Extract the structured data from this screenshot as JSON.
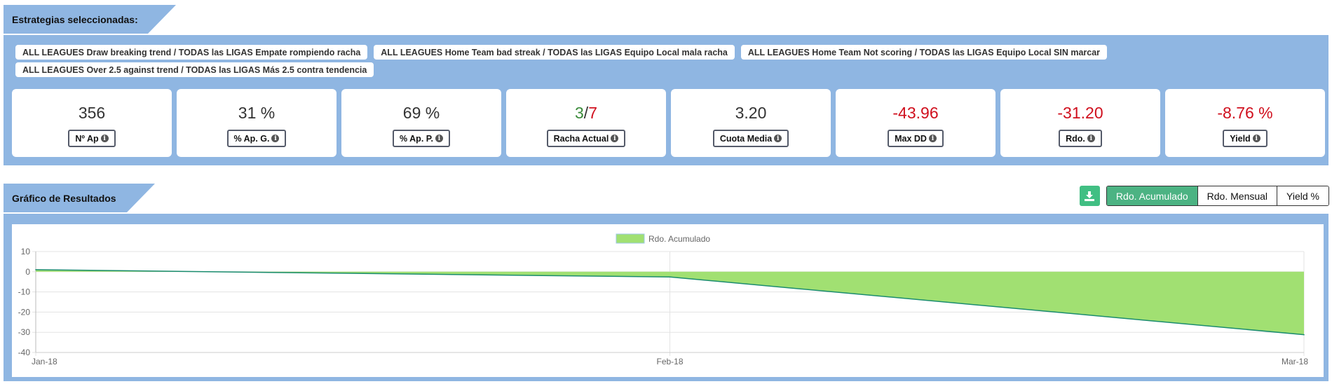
{
  "strategies_section": {
    "title": "Estrategias seleccionadas:",
    "tags": [
      "ALL LEAGUES Draw breaking trend / TODAS las LIGAS Empate rompiendo racha",
      "ALL LEAGUES Home Team bad streak / TODAS las LIGAS Equipo Local mala racha",
      "ALL LEAGUES Home Team Not scoring / TODAS las LIGAS Equipo Local SIN marcar",
      "ALL LEAGUES Over 2.5 against trend / TODAS las LIGAS Más 2.5 contra tendencia"
    ]
  },
  "stats": [
    {
      "value": "356",
      "label": "Nº Ap"
    },
    {
      "value": "31 %",
      "label": "% Ap. G."
    },
    {
      "value": "69 %",
      "label": "% Ap. P."
    },
    {
      "value_win": "3",
      "value_sep": "/",
      "value_loss": "7",
      "label": "Racha Actual"
    },
    {
      "value": "3.20",
      "label": "Cuota Media"
    },
    {
      "value": "-43.96",
      "label": "Max DD"
    },
    {
      "value": "-31.20",
      "label": "Rdo."
    },
    {
      "value": "-8.76 %",
      "label": "Yield"
    }
  ],
  "chart_section": {
    "title": "Gráfico de Resultados",
    "download_icon": "download-icon",
    "view_buttons": [
      "Rdo. Acumulado",
      "Rdo. Mensual",
      "Yield %"
    ],
    "active_view": "Rdo. Acumulado"
  },
  "colors": {
    "panel": "#8fb6e2",
    "accent_green": "#41bf83",
    "negative": "#d0101e",
    "positive": "#3a8a3a",
    "area_fill": "#a1e072",
    "line": "#1a8c6e"
  },
  "chart_data": {
    "type": "area",
    "categories": [
      "Jan-18",
      "Feb-18",
      "Mar-18"
    ],
    "series": [
      {
        "name": "Rdo. Acumulado",
        "values": [
          1.0,
          -2.6,
          -31.2
        ]
      }
    ],
    "ylim": [
      -40,
      10
    ],
    "yticks": [
      10,
      0,
      -10,
      -20,
      -30,
      -40
    ],
    "grid": true,
    "legend": "top-center"
  }
}
